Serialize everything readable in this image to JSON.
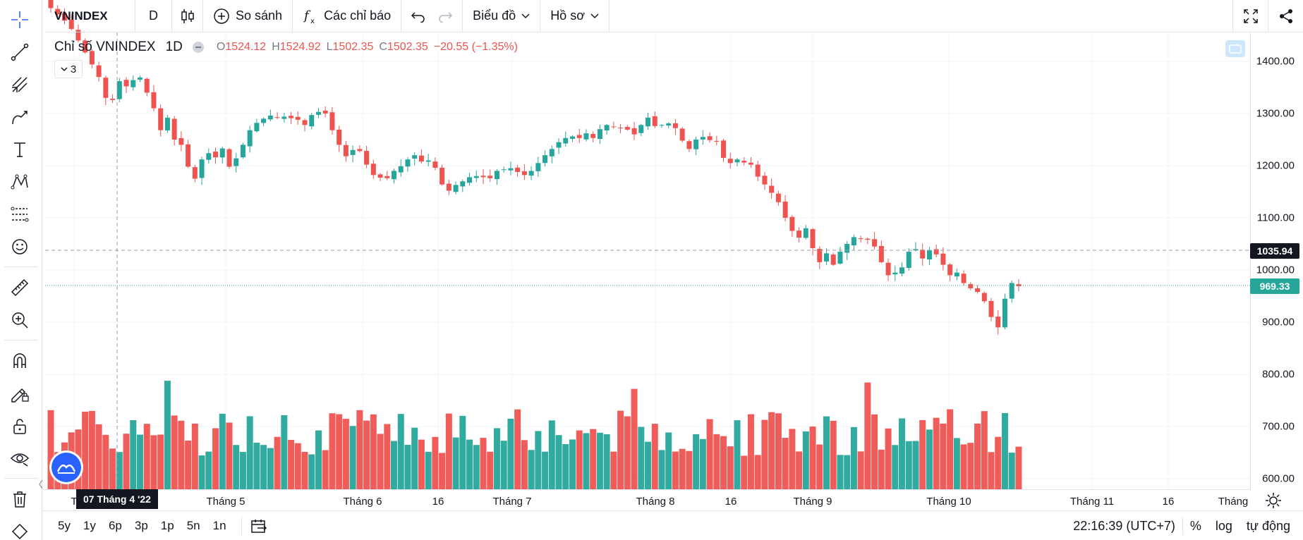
{
  "toolbar": {
    "symbol": "VNINDEX",
    "interval": "D",
    "compare_label": "So sánh",
    "indicators_label": "Các chỉ báo",
    "chart_label": "Biểu đồ",
    "profile_label": "Hồ sơ"
  },
  "legend": {
    "name": "Chỉ số VNINDEX",
    "interval": "1D",
    "o_key": "O",
    "o_val": "1524.12",
    "h_key": "H",
    "h_val": "1524.92",
    "l_key": "L",
    "l_val": "1502.35",
    "c_key": "C",
    "c_val": "1502.35",
    "change": "−20.55 (−1.35%)",
    "collapse_count": "3"
  },
  "price_axis": {
    "ticks": [
      "1400.00",
      "1300.00",
      "1200.00",
      "1100.00",
      "1000.00",
      "900.00",
      "800.00",
      "700.00",
      "600.00"
    ],
    "crosshair_price": "1035.94",
    "last_price": "969.33"
  },
  "time_axis": {
    "labels": [
      "T",
      "Tháng 5",
      "Tháng 6",
      "16",
      "Tháng 7",
      "Tháng 8",
      "16",
      "Tháng 9",
      "Tháng 10",
      "Tháng 11",
      "16",
      "Tháng"
    ],
    "crosshair_date": "07 Tháng 4 '22"
  },
  "bottom": {
    "ranges": [
      "5y",
      "1y",
      "6p",
      "3p",
      "1p",
      "5n",
      "1n"
    ],
    "clock": "22:16:39 (UTC+7)",
    "percent": "%",
    "log": "log",
    "auto": "tự động"
  },
  "colors": {
    "up": "#26a69a",
    "down": "#ef5350",
    "crosshair_bg": "#131722"
  },
  "chart_data": {
    "type": "candlestick",
    "symbol": "VNINDEX",
    "interval": "1D",
    "ylim": [
      560,
      1450
    ],
    "y_ticks": [
      1400,
      1300,
      1200,
      1100,
      1000,
      900,
      800,
      700,
      600
    ],
    "x_labels": [
      "Tháng 5",
      "Tháng 6",
      "16",
      "Tháng 7",
      "Tháng 8",
      "16",
      "Tháng 9",
      "Tháng 10",
      "Tháng 11",
      "16"
    ],
    "close": [
      1502,
      1490,
      1478,
      1462,
      1440,
      1417,
      1394,
      1370,
      1330,
      1326,
      1362,
      1352,
      1364,
      1369,
      1340,
      1310,
      1268,
      1292,
      1250,
      1240,
      1198,
      1175,
      1212,
      1224,
      1216,
      1233,
      1198,
      1214,
      1240,
      1268,
      1282,
      1290,
      1296,
      1292,
      1294,
      1291,
      1288,
      1278,
      1297,
      1303,
      1300,
      1268,
      1240,
      1218,
      1230,
      1228,
      1202,
      1182,
      1177,
      1176,
      1190,
      1199,
      1212,
      1220,
      1208,
      1210,
      1196,
      1164,
      1152,
      1163,
      1170,
      1178,
      1180,
      1178,
      1176,
      1190,
      1193,
      1195,
      1188,
      1182,
      1190,
      1205,
      1220,
      1232,
      1245,
      1253,
      1256,
      1253,
      1262,
      1253,
      1270,
      1278,
      1274,
      1272,
      1269,
      1260,
      1278,
      1292,
      1276,
      1278,
      1281,
      1272,
      1248,
      1232,
      1250,
      1255,
      1249,
      1246,
      1215,
      1205,
      1212,
      1206,
      1202,
      1179,
      1164,
      1148,
      1130,
      1100,
      1075,
      1062,
      1080,
      1042,
      1015,
      1032,
      1010,
      1035,
      1050,
      1063,
      1060,
      1058,
      1045,
      1015,
      990,
      995,
      1005,
      1035,
      1040,
      1022,
      1038,
      1030,
      1010,
      990,
      995,
      975,
      965,
      958,
      940,
      910,
      890,
      945,
      975,
      969
    ]
  }
}
